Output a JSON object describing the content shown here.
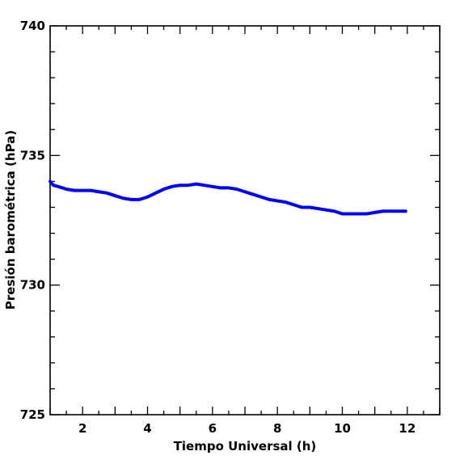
{
  "chart_data": {
    "type": "line",
    "xlabel": "Tiempo Universal (h)",
    "ylabel": "Presión barométrica (hPa)",
    "xlim": [
      1,
      13
    ],
    "ylim": [
      725,
      740
    ],
    "x_ticks": [
      2,
      4,
      6,
      8,
      10,
      12
    ],
    "y_ticks": [
      725,
      730,
      735,
      740
    ],
    "grid": false,
    "legend": "none",
    "series": [
      {
        "color": "#0000ff",
        "x": [
          1.0,
          1.1,
          1.25,
          1.5,
          1.75,
          2.0,
          2.25,
          2.5,
          2.75,
          3.0,
          3.25,
          3.5,
          3.75,
          4.0,
          4.25,
          4.5,
          4.75,
          5.0,
          5.25,
          5.5,
          5.75,
          6.0,
          6.25,
          6.5,
          6.75,
          7.0,
          7.25,
          7.5,
          7.75,
          8.0,
          8.25,
          8.5,
          8.75,
          9.0,
          9.25,
          9.5,
          9.75,
          10.0,
          10.25,
          10.5,
          10.75,
          11.0,
          11.25,
          11.5,
          11.75,
          11.95
        ],
        "y": [
          734.0,
          733.85,
          733.8,
          733.7,
          733.65,
          733.65,
          733.65,
          733.6,
          733.55,
          733.45,
          733.35,
          733.3,
          733.3,
          733.4,
          733.55,
          733.7,
          733.8,
          733.85,
          733.85,
          733.9,
          733.85,
          733.8,
          733.75,
          733.75,
          733.7,
          733.6,
          733.5,
          733.4,
          733.3,
          733.25,
          733.2,
          733.1,
          733.0,
          733.0,
          732.95,
          732.9,
          732.85,
          732.75,
          732.75,
          732.75,
          732.75,
          732.8,
          732.85,
          732.85,
          732.85,
          732.85
        ]
      }
    ]
  }
}
